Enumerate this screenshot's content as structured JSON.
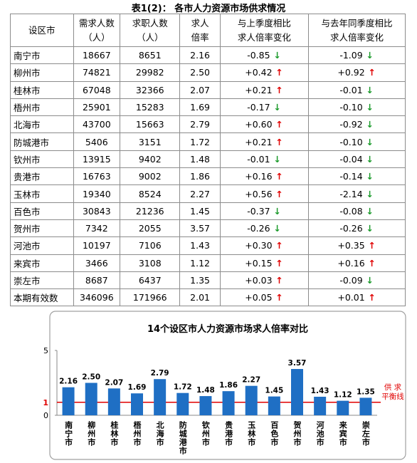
{
  "table": {
    "title": "表1(2)： 各市人力资源市场供求情况",
    "headers": [
      [
        "设区市"
      ],
      [
        "需求人数",
        "（人）"
      ],
      [
        "求职人数",
        "（人）"
      ],
      [
        "求人",
        "倍率"
      ],
      [
        "与上季度相比",
        "求人倍率变化"
      ],
      [
        "与去年同季度相比",
        "求人倍率变化"
      ]
    ],
    "rows": [
      [
        "南宁市",
        "18667",
        "8651",
        "2.16",
        "-0.85",
        "-1.09"
      ],
      [
        "柳州市",
        "74821",
        "29982",
        "2.50",
        "+0.42",
        "+0.92"
      ],
      [
        "桂林市",
        "67048",
        "32366",
        "2.07",
        "+0.21",
        "-0.01"
      ],
      [
        "梧州市",
        "25901",
        "15283",
        "1.69",
        "-0.17",
        "-0.10"
      ],
      [
        "北海市",
        "43700",
        "15663",
        "2.79",
        "+0.60",
        "-0.92"
      ],
      [
        "防城港市",
        "5406",
        "3151",
        "1.72",
        "+0.21",
        "-0.10"
      ],
      [
        "钦州市",
        "13915",
        "9402",
        "1.48",
        "-0.01",
        "-0.04"
      ],
      [
        "贵港市",
        "16763",
        "9002",
        "1.86",
        "+0.16",
        "-0.14"
      ],
      [
        "玉林市",
        "19340",
        "8524",
        "2.27",
        "+0.56",
        "-2.14"
      ],
      [
        "百色市",
        "30843",
        "21236",
        "1.45",
        "-0.37",
        "-0.08"
      ],
      [
        "贺州市",
        "7342",
        "2055",
        "3.57",
        "-0.26",
        "-0.26"
      ],
      [
        "河池市",
        "10197",
        "7106",
        "1.43",
        "+0.30",
        "+0.35"
      ],
      [
        "来宾市",
        "3466",
        "3108",
        "1.12",
        "+0.15",
        "+0.16"
      ],
      [
        "崇左市",
        "8687",
        "6437",
        "1.35",
        "+0.03",
        "-0.09"
      ],
      [
        "本期有效数",
        "346096",
        "171966",
        "2.01",
        "+0.05",
        "+0.01"
      ]
    ]
  },
  "chart_data": {
    "type": "bar",
    "title": "14个设区市人力资源市场求人倍率对比",
    "categories": [
      "南宁市",
      "柳州市",
      "桂林市",
      "梧州市",
      "北海市",
      "防城港市",
      "钦州市",
      "贵港市",
      "玉林市",
      "百色市",
      "贺州市",
      "河池市",
      "来宾市",
      "崇左市"
    ],
    "values": [
      2.16,
      2.5,
      2.07,
      1.69,
      2.79,
      1.72,
      1.48,
      1.86,
      2.27,
      1.45,
      3.57,
      1.43,
      1.12,
      1.35
    ],
    "value_labels": [
      "2.16",
      "2.50",
      "2.07",
      "1.69",
      "2.79",
      "1.72",
      "1.48",
      "1.86",
      "2.27",
      "1.45",
      "3.57",
      "1.43",
      "1.12",
      "1.35"
    ],
    "color": "#1f6fc4",
    "ylim": [
      0,
      5
    ],
    "yticks": [
      0,
      5
    ],
    "ref_line": {
      "value": 1,
      "color": "#e00000",
      "label_lines": [
        "供 求",
        "平衡线"
      ]
    }
  }
}
